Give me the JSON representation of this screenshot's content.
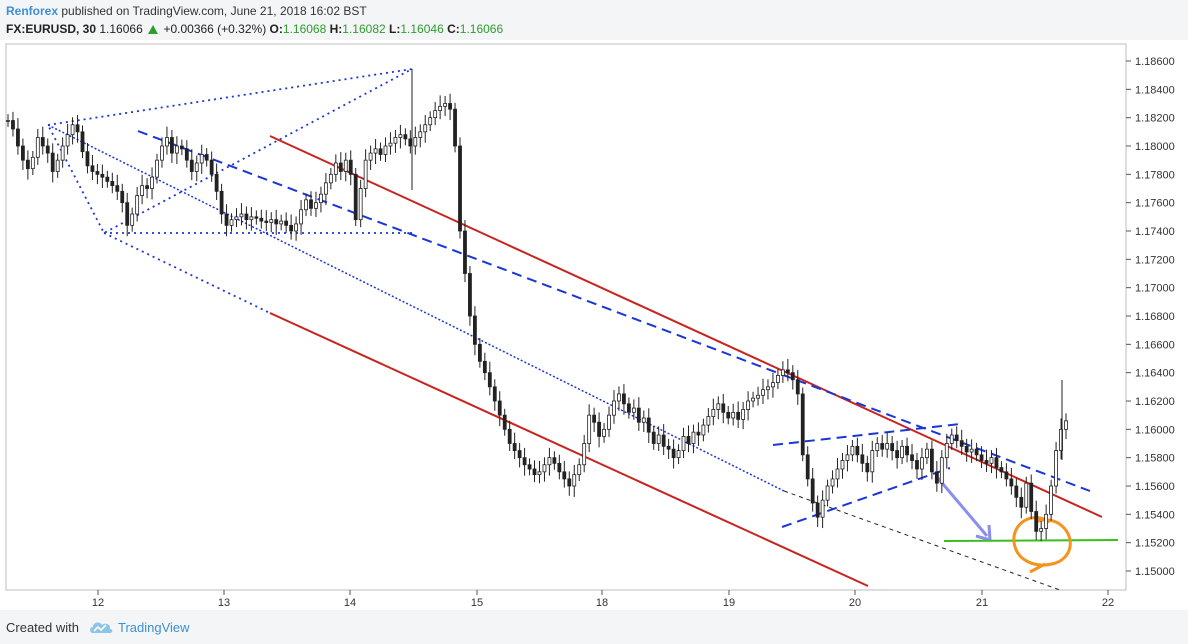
{
  "header": {
    "author": "Renforex",
    "published": "published on TradingView.com, June 21, 2018 16:02 BST",
    "symbol": "FX:EURUSD, 30",
    "last": "1.16066",
    "change": "+0.00366 (+0.32%)",
    "o_label": "O:",
    "o_value": "1.16068",
    "h_label": "H:",
    "h_value": "1.16082",
    "l_label": "L:",
    "l_value": "1.16046",
    "c_label": "C:",
    "c_value": "1.16066"
  },
  "footer": {
    "created_with": "Created with",
    "brand": "TradingView"
  },
  "colors": {
    "up": "#2e9c2e",
    "candle": "#222222",
    "red_line": "#c8231e",
    "blue_line": "#1a35d8",
    "green_line": "#3cbf1e",
    "orange": "#f5931e",
    "arrow": "#8a8ef0"
  },
  "chart_data": {
    "type": "candlestick",
    "title": "",
    "xlabel": "",
    "ylabel": "",
    "ylim": [
      1.149,
      1.187
    ],
    "grid": false,
    "y_ticks": [
      "1.18600",
      "1.18400",
      "1.18200",
      "1.18000",
      "1.17800",
      "1.17600",
      "1.17400",
      "1.17200",
      "1.17000",
      "1.16800",
      "1.16600",
      "1.16400",
      "1.16200",
      "1.16000",
      "1.15800",
      "1.15600",
      "1.15400",
      "1.15200",
      "1.15000"
    ],
    "x_ticks": [
      "12",
      "13",
      "14",
      "15",
      "18",
      "19",
      "20",
      "21",
      "22"
    ],
    "series": [
      {
        "values": [
          1.1818,
          1.1812,
          1.18,
          1.179,
          1.1784,
          1.1792,
          1.1806,
          1.18,
          1.1795,
          1.1782,
          1.179,
          1.18,
          1.1808,
          1.1815,
          1.181,
          1.1796,
          1.1786,
          1.1782,
          1.178,
          1.1778,
          1.1775,
          1.1772,
          1.1768,
          1.176,
          1.1744,
          1.1752,
          1.1765,
          1.1772,
          1.177,
          1.1778,
          1.179,
          1.18,
          1.1806,
          1.1795,
          1.18,
          1.1798,
          1.179,
          1.1782,
          1.1788,
          1.1794,
          1.179,
          1.178,
          1.1768,
          1.1752,
          1.1744,
          1.1748,
          1.175,
          1.1752,
          1.1748,
          1.175,
          1.1749,
          1.1747,
          1.1746,
          1.1748,
          1.1745,
          1.1747,
          1.1744,
          1.174,
          1.1745,
          1.1755,
          1.1762,
          1.1756,
          1.176,
          1.1766,
          1.1774,
          1.178,
          1.1788,
          1.1782,
          1.179,
          1.178,
          1.1748,
          1.177,
          1.179,
          1.1795,
          1.1798,
          1.1794,
          1.18,
          1.1802,
          1.1806,
          1.1808,
          1.1805,
          1.18,
          1.1806,
          1.181,
          1.1815,
          1.182,
          1.1825,
          1.1828,
          1.183,
          1.1826,
          1.18,
          1.174,
          1.171,
          1.168,
          1.166,
          1.1648,
          1.164,
          1.163,
          1.162,
          1.161,
          1.16,
          1.159,
          1.1585,
          1.158,
          1.1575,
          1.1572,
          1.1568,
          1.157,
          1.1575,
          1.158,
          1.1576,
          1.157,
          1.1565,
          1.156,
          1.1568,
          1.1575,
          1.159,
          1.161,
          1.1605,
          1.1595,
          1.16,
          1.161,
          1.162,
          1.1625,
          1.1618,
          1.1612,
          1.1615,
          1.1605,
          1.1608,
          1.1598,
          1.159,
          1.1596,
          1.1588,
          1.1586,
          1.158,
          1.1585,
          1.1595,
          1.159,
          1.1598,
          1.1596,
          1.1603,
          1.1609,
          1.1614,
          1.1618,
          1.1612,
          1.1608,
          1.1612,
          1.1607,
          1.1614,
          1.162,
          1.1622,
          1.1624,
          1.1628,
          1.163,
          1.1633,
          1.1638,
          1.1642,
          1.164,
          1.1635,
          1.1625,
          1.1582,
          1.1565,
          1.1548,
          1.1538,
          1.155,
          1.156,
          1.1565,
          1.1572,
          1.1578,
          1.1582,
          1.1588,
          1.1582,
          1.1576,
          1.157,
          1.1585,
          1.159,
          1.1586,
          1.159,
          1.1585,
          1.158,
          1.1588,
          1.1582,
          1.1578,
          1.1572,
          1.158,
          1.1586,
          1.157,
          1.1562,
          1.158,
          1.159,
          1.1596,
          1.1592,
          1.1588,
          1.1584,
          1.1586,
          1.1582,
          1.1578,
          1.1576,
          1.158,
          1.1573,
          1.157,
          1.1565,
          1.156,
          1.1552,
          1.1545,
          1.1562,
          1.1542,
          1.1528,
          1.153,
          1.154,
          1.156,
          1.1585,
          1.16,
          1.1606
        ]
      }
    ],
    "annotations": {
      "red_channel_top": [
        [
          "12.05",
          1.1802
        ],
        [
          "21.25",
          1.1538
        ]
      ],
      "red_channel_bottom": [
        [
          "12.05",
          1.1682
        ],
        [
          "19.9",
          1.149
        ]
      ],
      "blue_dashed_top": [
        [
          "11.6",
          1.181
        ],
        [
          "21.3",
          1.1555
        ]
      ],
      "horizontal_support": {
        "value": 1.1521,
        "color": "green"
      }
    }
  }
}
